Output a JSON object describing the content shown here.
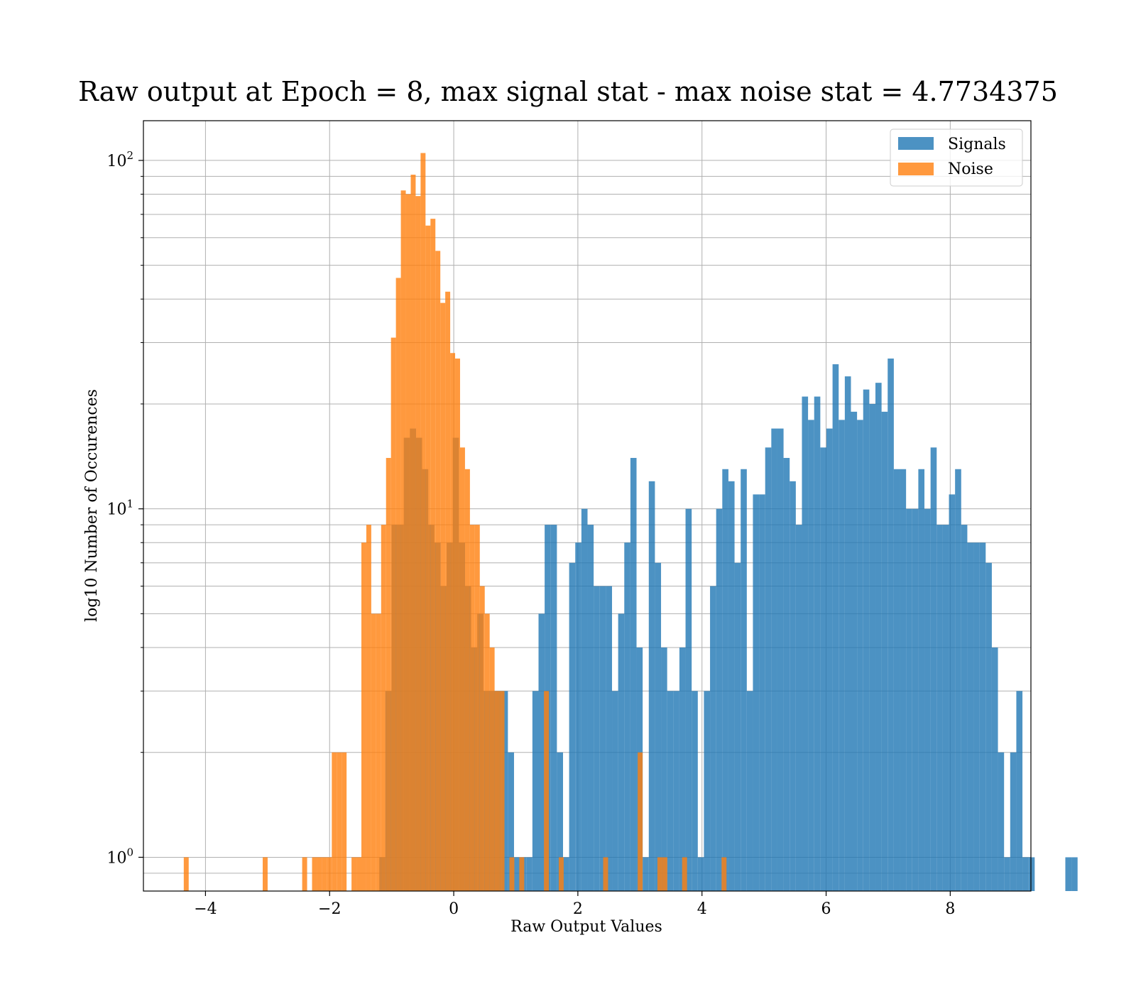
{
  "chart_data": {
    "type": "bar",
    "title": "Raw output at Epoch = 8, max signal stat - max noise stat = 4.7734375",
    "xlabel": "Raw Output Values",
    "ylabel": "log10 Number of Occurences",
    "xlim": [
      -5.0,
      9.3
    ],
    "ylim": [
      0.8,
      130
    ],
    "yscale": "log",
    "grid": true,
    "legend_position": "top-right",
    "x_ticks": [
      -4,
      -2,
      0,
      2,
      4,
      6,
      8
    ],
    "x_tick_labels": [
      "−4",
      "−2",
      "0",
      "2",
      "4",
      "6",
      "8"
    ],
    "y_ticks": [
      {
        "value": 1,
        "base": "10",
        "exp": "0"
      },
      {
        "value": 10,
        "base": "10",
        "exp": "1"
      },
      {
        "value": 100,
        "base": "10",
        "exp": "2"
      }
    ],
    "series": [
      {
        "name": "Signals",
        "color": "#1f77b4",
        "opacity": 0.8,
        "bin_start": -1.2,
        "bin_width": 0.0987,
        "values": [
          1,
          3,
          9,
          9,
          16,
          17,
          16,
          13,
          9,
          8,
          6,
          8,
          16,
          8,
          6,
          4,
          5,
          3,
          3,
          3,
          3,
          2,
          1,
          1,
          1,
          3,
          5,
          9,
          9,
          2,
          1,
          7,
          8,
          10,
          9,
          6,
          6,
          6,
          3,
          5,
          8,
          14,
          4,
          1,
          12,
          7,
          4,
          3,
          3,
          4,
          10,
          3,
          1,
          3,
          6,
          10,
          13,
          12,
          7,
          13,
          3,
          11,
          11,
          15,
          17,
          17,
          14,
          12,
          9,
          21,
          18,
          21,
          15,
          17,
          26,
          18,
          24,
          19,
          18,
          22,
          20,
          23,
          19,
          27,
          13,
          13,
          10,
          10,
          13,
          10,
          15,
          9,
          9,
          11,
          13,
          9,
          8,
          8,
          8,
          7,
          4,
          2,
          1,
          2,
          3,
          1,
          1,
          0,
          0,
          0,
          0,
          0,
          1,
          1
        ]
      },
      {
        "name": "Noise",
        "color": "#ff7f0e",
        "opacity": 0.8,
        "bin_start": -4.35,
        "bin_width": 0.0795,
        "values": [
          1,
          0,
          0,
          0,
          0,
          0,
          0,
          0,
          0,
          0,
          0,
          0,
          0,
          0,
          0,
          0,
          1,
          0,
          0,
          0,
          0,
          0,
          0,
          0,
          1,
          0,
          1,
          1,
          1,
          1,
          2,
          2,
          2,
          0,
          1,
          1,
          8,
          9,
          5,
          5,
          9,
          14,
          31,
          46,
          82,
          80,
          91,
          79,
          105,
          65,
          68,
          55,
          39,
          42,
          28,
          27,
          15,
          13,
          9,
          9,
          6,
          5,
          4,
          3,
          3,
          0,
          1,
          0,
          1,
          0,
          0,
          0,
          0,
          3,
          0,
          0,
          1,
          0,
          0,
          0,
          0,
          0,
          0,
          0,
          0,
          1,
          0,
          0,
          0,
          0,
          0,
          0,
          2,
          0,
          0,
          0,
          1,
          1,
          0,
          0,
          0,
          1,
          0,
          0,
          0,
          0,
          0,
          0,
          0,
          1
        ]
      }
    ]
  }
}
